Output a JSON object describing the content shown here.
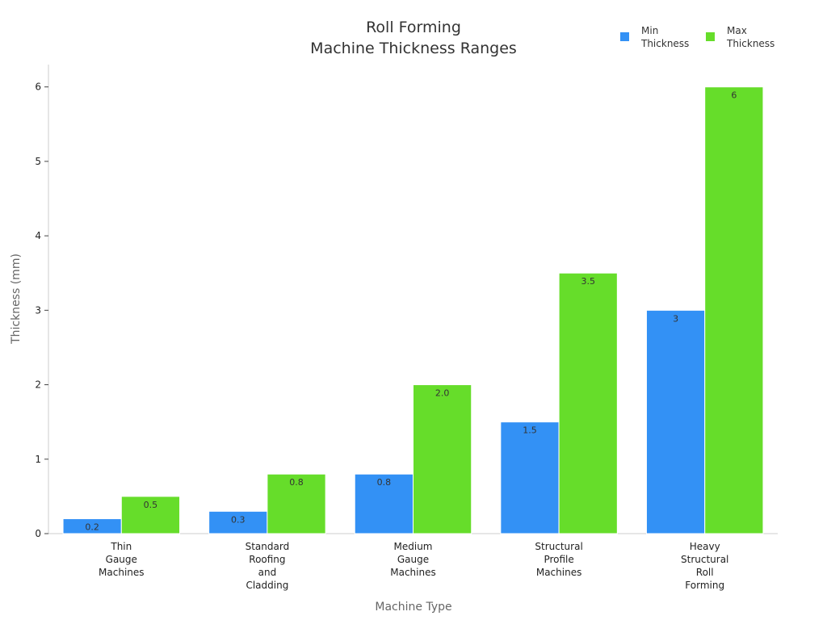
{
  "chart_data": {
    "type": "bar",
    "title": "Roll Forming\nMachine Thickness Ranges",
    "x_label": "Machine Type",
    "y_label": "Thickness (mm)",
    "categories": [
      "Thin Gauge Machines",
      "Standard Roofing and Cladding",
      "Medium Gauge Machines",
      "Structural Profile Machines",
      "Heavy Structural Roll Forming"
    ],
    "series": [
      {
        "name": "Min Thickness",
        "color": "#3391f5",
        "values": [
          0.2,
          0.3,
          0.8,
          1.5,
          3
        ],
        "value_labels": [
          "0.2",
          "0.3",
          "0.8",
          "1.5",
          "3"
        ]
      },
      {
        "name": "Max Thickness",
        "color": "#66dd2a",
        "values": [
          0.5,
          0.8,
          2.0,
          3.5,
          6
        ],
        "value_labels": [
          "0.5",
          "0.8",
          "2.0",
          "3.5",
          "6"
        ]
      }
    ],
    "ylim": [
      0,
      6.3
    ],
    "yticks": [
      0,
      1,
      2,
      3,
      4,
      5,
      6
    ],
    "grid": false,
    "legend": "top-right"
  }
}
